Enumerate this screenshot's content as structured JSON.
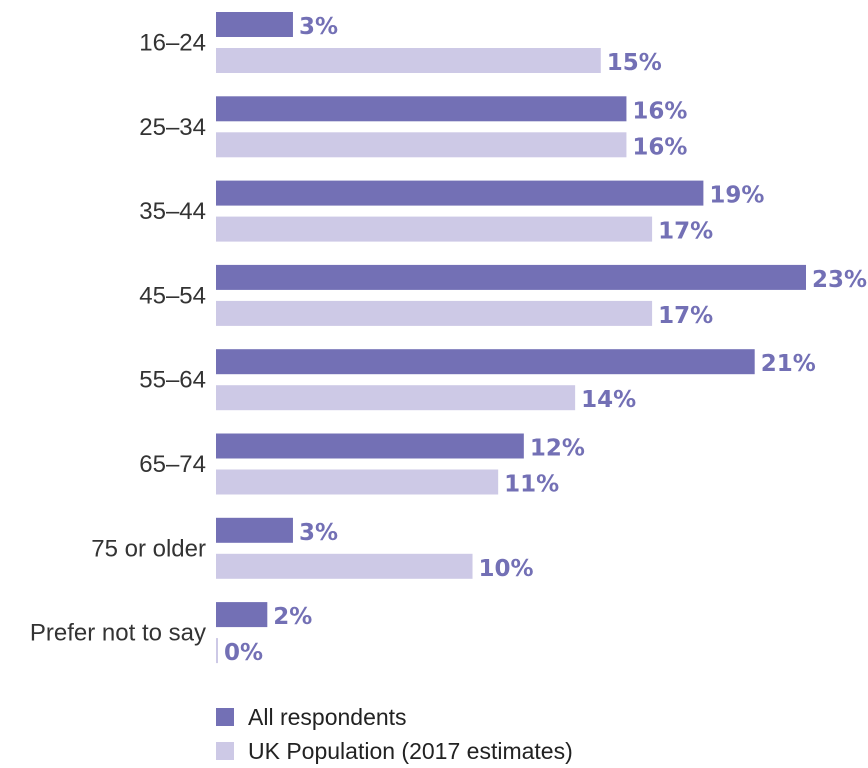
{
  "chart_data": {
    "type": "bar",
    "orientation": "horizontal",
    "categories": [
      "16–24",
      "25–34",
      "35–44",
      "45–54",
      "55–64",
      "65–74",
      "75 or older",
      "Prefer not to say"
    ],
    "series": [
      {
        "name": "All respondents",
        "color": "#7370b5",
        "values": [
          3,
          16,
          19,
          23,
          21,
          12,
          3,
          2
        ],
        "labels": [
          "3%",
          "16%",
          "19%",
          "23%",
          "21%",
          "12%",
          "3%",
          "2%"
        ]
      },
      {
        "name": "UK Population (2017 estimates)",
        "color": "#cdc9e6",
        "values": [
          15,
          16,
          17,
          17,
          14,
          11,
          10,
          0
        ],
        "labels": [
          "15%",
          "16%",
          "17%",
          "17%",
          "14%",
          "11%",
          "10%",
          "0%"
        ]
      }
    ],
    "xlim": [
      0,
      23
    ],
    "label_color": "#7370b5",
    "legend_position": "bottom-left",
    "grid": false
  }
}
